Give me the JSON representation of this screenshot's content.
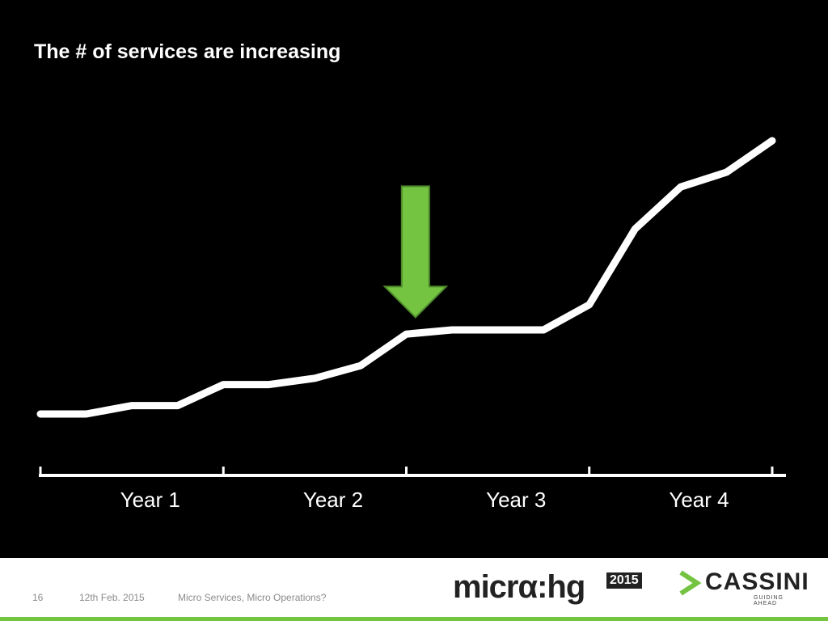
{
  "slide": {
    "title": "The # of services are increasing"
  },
  "chart_data": {
    "type": "line",
    "title": "",
    "xlabel": "",
    "ylabel": "",
    "categories": [
      "Year 1",
      "Year 2",
      "Year 3",
      "Year 4"
    ],
    "x": [
      0,
      0.25,
      0.5,
      0.75,
      1,
      1.25,
      1.5,
      1.75,
      2,
      2.25,
      2.5,
      2.75,
      3,
      3.25,
      3.5,
      3.75,
      4
    ],
    "series": [
      {
        "values": [
          15,
          15,
          17,
          17,
          22,
          22,
          23.5,
          26.5,
          34,
          35,
          35,
          35,
          41,
          59,
          69,
          72.5,
          80
        ]
      }
    ],
    "xlim": [
      0,
      4
    ],
    "ylim": [
      0,
      100
    ],
    "grid": false,
    "annotation": {
      "type": "arrow-down",
      "x": 2.05,
      "y": 38,
      "color": "#74c442"
    },
    "line_color": "#ffffff"
  },
  "footer": {
    "page_number": "16",
    "date": "12th Feb. 2015",
    "talk_title": "Micro Services, Micro Operations?",
    "conference_logo": {
      "text": "micrα:hg",
      "year": "2015"
    },
    "company_logo": {
      "text": "CASSINI",
      "tagline": "GUIDING AHEAD",
      "accent": "#74c442"
    },
    "bar_color": "#74c442"
  }
}
